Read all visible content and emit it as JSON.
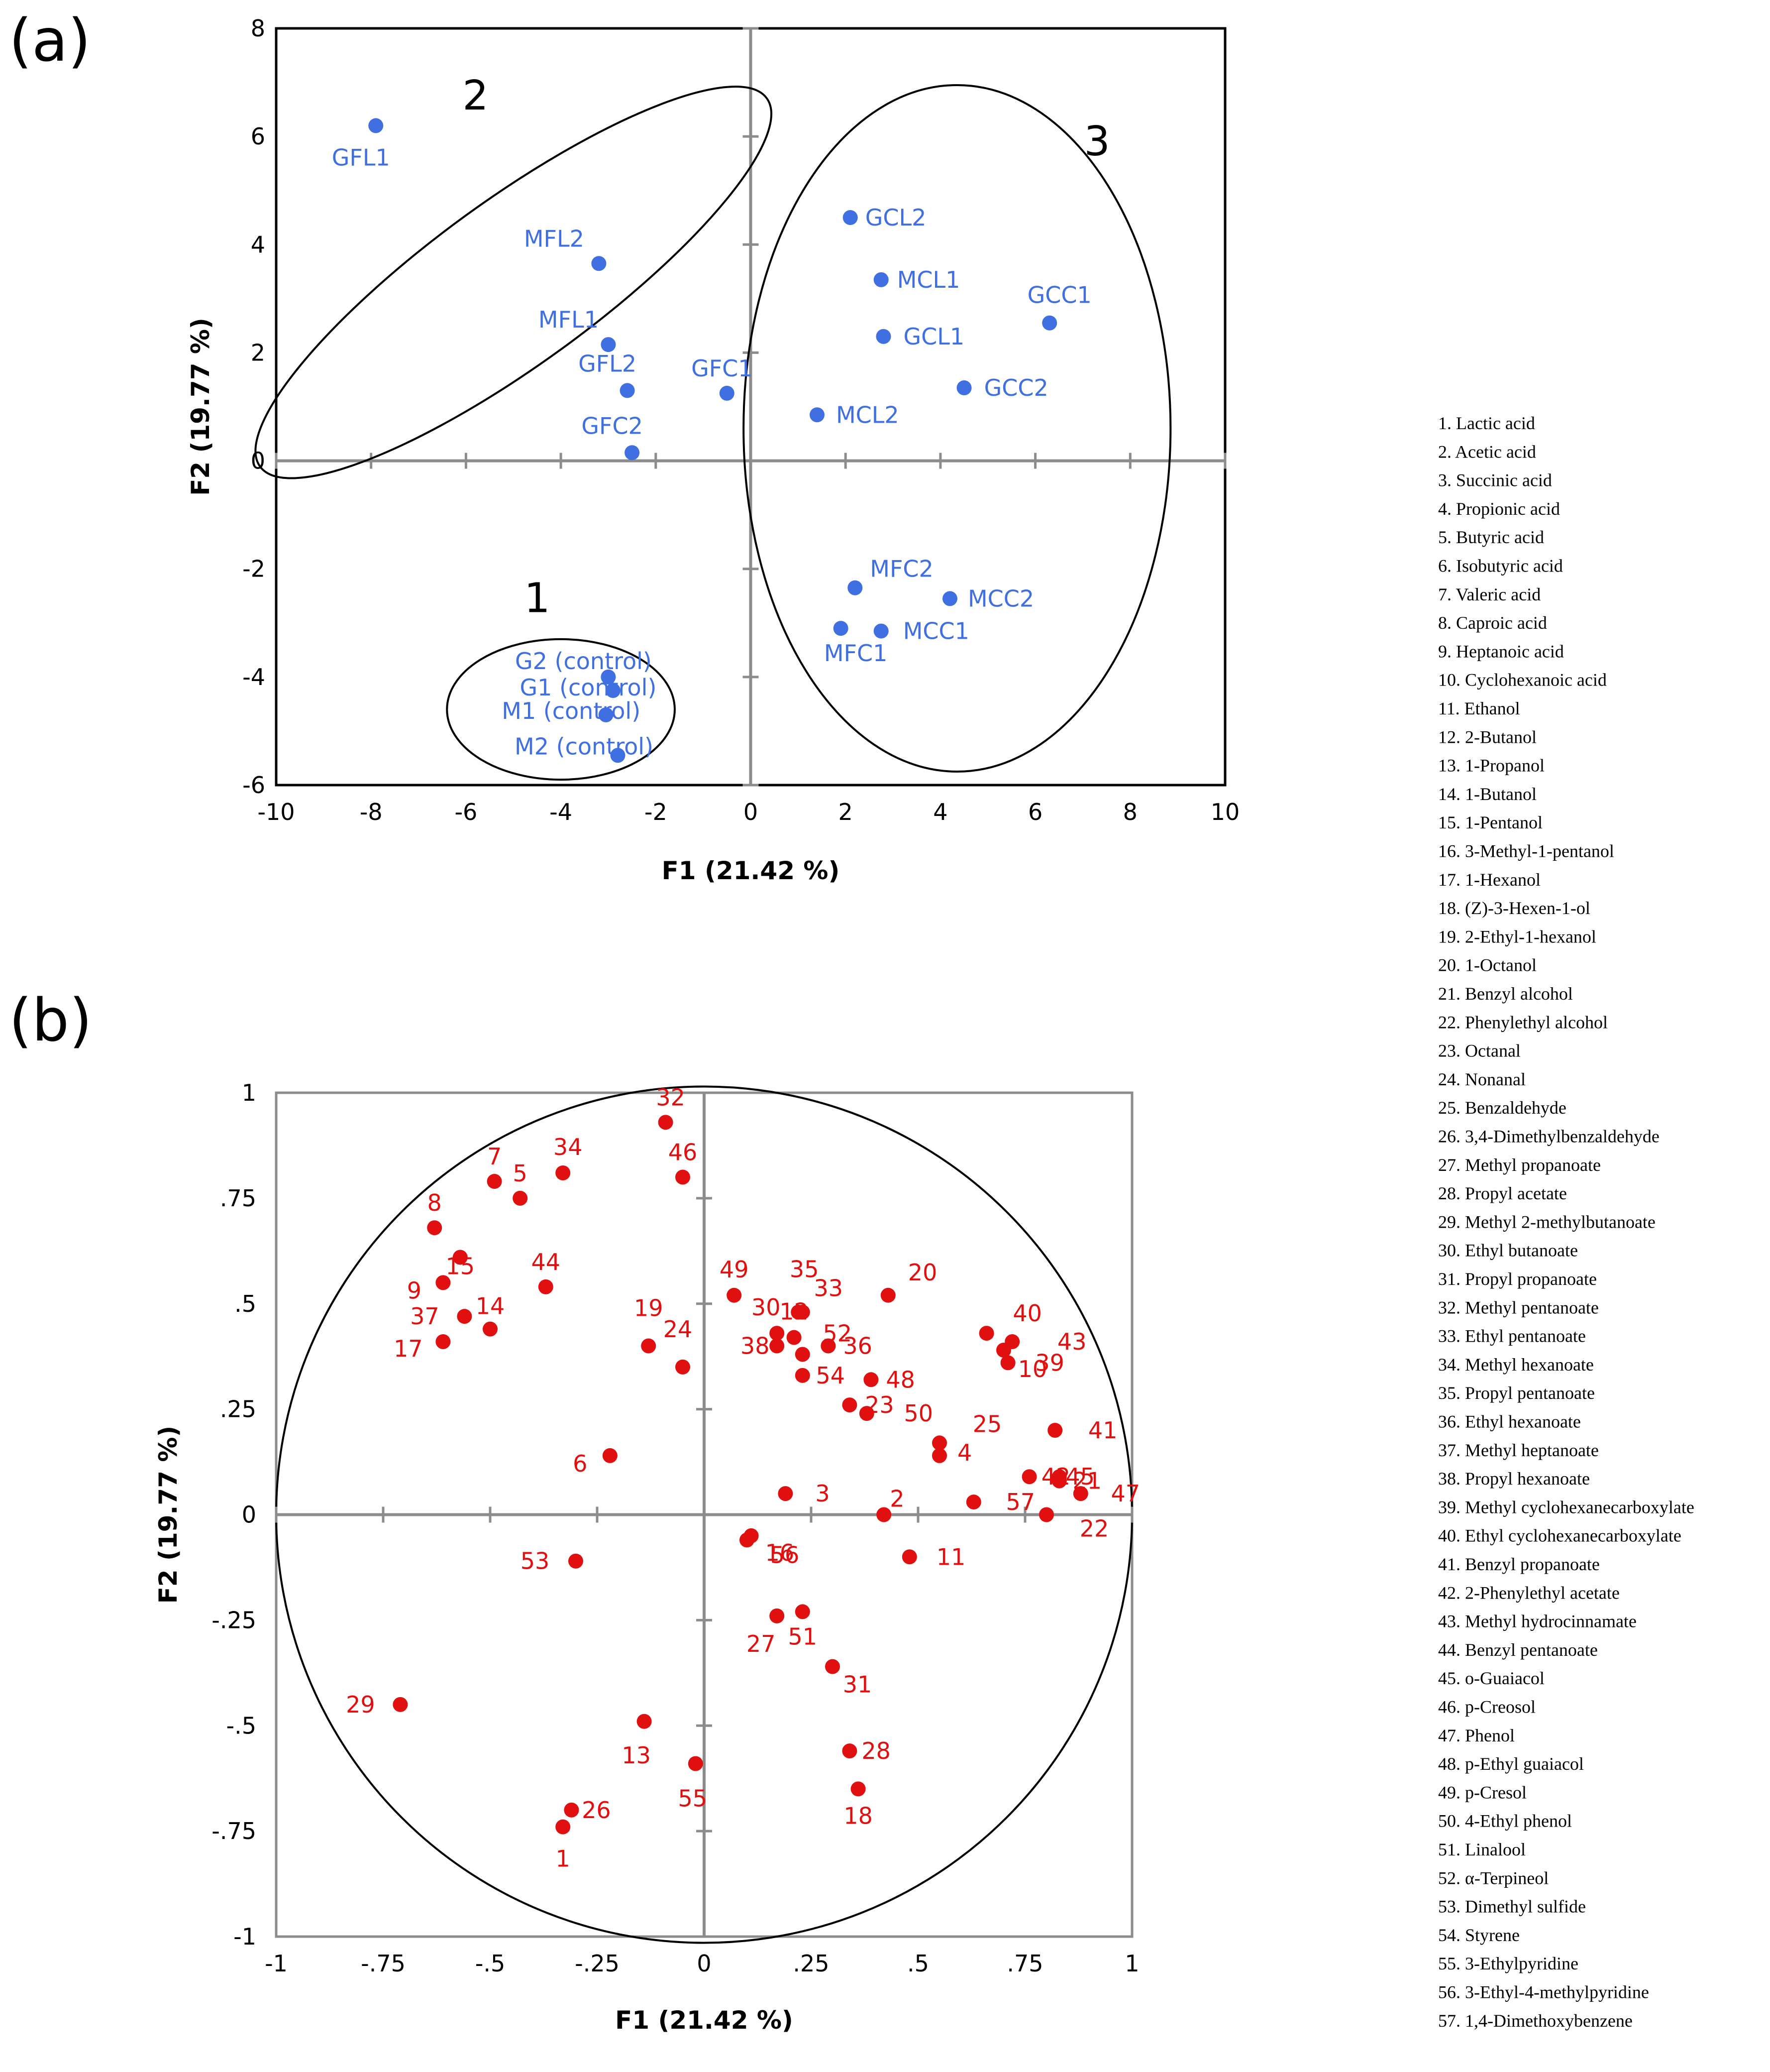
{
  "colors": {
    "blue": "#3f6fe0",
    "red": "#e01010",
    "axis": "#8c8c8c",
    "frame": "#000000"
  },
  "chart_data": [
    {
      "panel": "(a)",
      "type": "scatter",
      "xlabel": "F1 (21.42 %)",
      "ylabel": "F2 (19.77 %)",
      "xlim": [
        -10,
        10
      ],
      "ylim": [
        -6,
        8
      ],
      "xticks": [
        -10,
        -8,
        -6,
        -4,
        -2,
        0,
        2,
        4,
        6,
        8,
        10
      ],
      "yticks": [
        -6,
        -4,
        -2,
        0,
        2,
        4,
        6,
        8
      ],
      "points": [
        {
          "label": "GFL1",
          "x": -7.9,
          "y": 6.2
        },
        {
          "label": "MFL2",
          "x": -3.2,
          "y": 3.65
        },
        {
          "label": "MFL1",
          "x": -3.0,
          "y": 2.15
        },
        {
          "label": "GFL2",
          "x": -2.6,
          "y": 1.3
        },
        {
          "label": "GFC1",
          "x": -0.5,
          "y": 1.25
        },
        {
          "label": "GFC2",
          "x": -2.5,
          "y": 0.15
        },
        {
          "label": "GCL2",
          "x": 2.1,
          "y": 4.5
        },
        {
          "label": "MCL1",
          "x": 2.75,
          "y": 3.35
        },
        {
          "label": "GCL1",
          "x": 2.8,
          "y": 2.3
        },
        {
          "label": "GCC1",
          "x": 6.3,
          "y": 2.55
        },
        {
          "label": "GCC2",
          "x": 4.5,
          "y": 1.35
        },
        {
          "label": "MCL2",
          "x": 1.4,
          "y": 0.85
        },
        {
          "label": "MFC2",
          "x": 2.2,
          "y": -2.35
        },
        {
          "label": "MCC2",
          "x": 4.2,
          "y": -2.55
        },
        {
          "label": "MFC1",
          "x": 1.9,
          "y": -3.1
        },
        {
          "label": "MCC1",
          "x": 2.75,
          "y": -3.15
        },
        {
          "label": "G2 (control)",
          "x": -3.0,
          "y": -4.0
        },
        {
          "label": "G1 (control)",
          "x": -2.9,
          "y": -4.25
        },
        {
          "label": "M1 (control)",
          "x": -3.05,
          "y": -4.7
        },
        {
          "label": "M2 (control)",
          "x": -2.8,
          "y": -5.45
        }
      ],
      "clusters": [
        {
          "label": "1",
          "cx": -4.0,
          "cy": -4.6,
          "rx": 2.4,
          "ry": 1.3,
          "angle": 0
        },
        {
          "label": "2",
          "cx": -5.0,
          "cy": 3.3,
          "rx": 6.6,
          "ry": 1.65,
          "angle": -36
        },
        {
          "label": "3",
          "cx": 4.35,
          "cy": 0.6,
          "rx": 4.5,
          "ry": 6.35,
          "angle": 0
        }
      ]
    },
    {
      "panel": "(b)",
      "type": "scatter",
      "xlabel": "F1 (21.42 %)",
      "ylabel": "F2 (19.77 %)",
      "xlim": [
        -1,
        1
      ],
      "ylim": [
        -1,
        1
      ],
      "xticks": [
        -1,
        -0.75,
        -0.5,
        -0.25,
        0,
        0.25,
        0.5,
        0.75,
        1
      ],
      "yticks": [
        -1,
        -0.75,
        -0.5,
        -0.25,
        0,
        0.25,
        0.5,
        0.75,
        1
      ],
      "circle_radius": 1,
      "points": [
        {
          "label": "1",
          "x": -0.33,
          "y": -0.74
        },
        {
          "label": "2",
          "x": 0.42,
          "y": 0.0
        },
        {
          "label": "3",
          "x": 0.19,
          "y": 0.05
        },
        {
          "label": "4",
          "x": 0.55,
          "y": 0.14
        },
        {
          "label": "5",
          "x": -0.43,
          "y": 0.75
        },
        {
          "label": "6",
          "x": -0.22,
          "y": 0.14
        },
        {
          "label": "7",
          "x": -0.49,
          "y": 0.79
        },
        {
          "label": "8",
          "x": -0.63,
          "y": 0.68
        },
        {
          "label": "9",
          "x": -0.61,
          "y": 0.55
        },
        {
          "label": "10",
          "x": 0.7,
          "y": 0.39
        },
        {
          "label": "11",
          "x": 0.48,
          "y": -0.1
        },
        {
          "label": "12",
          "x": 0.21,
          "y": 0.42
        },
        {
          "label": "13",
          "x": -0.14,
          "y": -0.49
        },
        {
          "label": "14",
          "x": -0.5,
          "y": 0.44
        },
        {
          "label": "15",
          "x": -0.57,
          "y": 0.61
        },
        {
          "label": "16",
          "x": 0.11,
          "y": -0.05
        },
        {
          "label": "17",
          "x": -0.61,
          "y": 0.41
        },
        {
          "label": "18",
          "x": 0.36,
          "y": -0.65
        },
        {
          "label": "19",
          "x": -0.13,
          "y": 0.4
        },
        {
          "label": "20",
          "x": 0.43,
          "y": 0.52
        },
        {
          "label": "21",
          "x": 0.83,
          "y": 0.08
        },
        {
          "label": "22",
          "x": 0.8,
          "y": 0.0
        },
        {
          "label": "23",
          "x": 0.34,
          "y": 0.26
        },
        {
          "label": "24",
          "x": -0.05,
          "y": 0.35
        },
        {
          "label": "25",
          "x": 0.55,
          "y": 0.17
        },
        {
          "label": "26",
          "x": -0.31,
          "y": -0.7
        },
        {
          "label": "27",
          "x": 0.17,
          "y": -0.24
        },
        {
          "label": "28",
          "x": 0.34,
          "y": -0.56
        },
        {
          "label": "29",
          "x": -0.71,
          "y": -0.45
        },
        {
          "label": "30",
          "x": 0.17,
          "y": 0.43
        },
        {
          "label": "31",
          "x": 0.3,
          "y": -0.36
        },
        {
          "label": "32",
          "x": -0.09,
          "y": 0.93
        },
        {
          "label": "33",
          "x": 0.23,
          "y": 0.48
        },
        {
          "label": "34",
          "x": -0.33,
          "y": 0.81
        },
        {
          "label": "35",
          "x": 0.22,
          "y": 0.48
        },
        {
          "label": "36",
          "x": 0.29,
          "y": 0.4
        },
        {
          "label": "37",
          "x": -0.56,
          "y": 0.47
        },
        {
          "label": "38",
          "x": 0.17,
          "y": 0.4
        },
        {
          "label": "39",
          "x": 0.71,
          "y": 0.36
        },
        {
          "label": "40",
          "x": 0.66,
          "y": 0.43
        },
        {
          "label": "41",
          "x": 0.82,
          "y": 0.2
        },
        {
          "label": "42",
          "x": 0.76,
          "y": 0.09
        },
        {
          "label": "43",
          "x": 0.72,
          "y": 0.41
        },
        {
          "label": "44",
          "x": -0.37,
          "y": 0.54
        },
        {
          "label": "45",
          "x": 0.83,
          "y": 0.09
        },
        {
          "label": "46",
          "x": -0.05,
          "y": 0.8
        },
        {
          "label": "47",
          "x": 0.88,
          "y": 0.05
        },
        {
          "label": "48",
          "x": 0.39,
          "y": 0.32
        },
        {
          "label": "49",
          "x": 0.07,
          "y": 0.52
        },
        {
          "label": "50",
          "x": 0.38,
          "y": 0.24
        },
        {
          "label": "51",
          "x": 0.23,
          "y": -0.23
        },
        {
          "label": "52",
          "x": 0.23,
          "y": 0.38
        },
        {
          "label": "53",
          "x": -0.3,
          "y": -0.11
        },
        {
          "label": "54",
          "x": 0.23,
          "y": 0.33
        },
        {
          "label": "55",
          "x": -0.02,
          "y": -0.59
        },
        {
          "label": "56",
          "x": 0.1,
          "y": -0.06
        },
        {
          "label": "57",
          "x": 0.63,
          "y": 0.03
        }
      ]
    }
  ],
  "panel_labels": {
    "a": "(a)",
    "b": "(b)"
  },
  "legend_items": [
    "1. Lactic acid",
    "2. Acetic acid",
    "3. Succinic acid",
    "4. Propionic acid",
    "5. Butyric acid",
    "6. Isobutyric acid",
    "7. Valeric acid",
    "8. Caproic acid",
    "9. Heptanoic acid",
    "10. Cyclohexanoic acid",
    "11. Ethanol",
    "12. 2-Butanol",
    "13. 1-Propanol",
    "14. 1-Butanol",
    "15. 1-Pentanol",
    "16. 3-Methyl-1-pentanol",
    "17. 1-Hexanol",
    "18. (Z)-3-Hexen-1-ol",
    "19. 2-Ethyl-1-hexanol",
    "20. 1-Octanol",
    "21. Benzyl alcohol",
    "22. Phenylethyl alcohol",
    "23. Octanal",
    "24. Nonanal",
    "25. Benzaldehyde",
    "26. 3,4-Dimethylbenzaldehyde",
    "27. Methyl propanoate",
    "28. Propyl acetate",
    "29. Methyl 2-methylbutanoate",
    "30. Ethyl butanoate",
    "31. Propyl propanoate",
    "32. Methyl pentanoate",
    "33. Ethyl pentanoate",
    "34. Methyl hexanoate",
    "35. Propyl pentanoate",
    "36. Ethyl hexanoate",
    "37. Methyl heptanoate",
    "38. Propyl hexanoate",
    "39. Methyl cyclohexanecarboxylate",
    "40. Ethyl cyclohexanecarboxylate",
    "41. Benzyl propanoate",
    "42. 2-Phenylethyl acetate",
    "43. Methyl hydrocinnamate",
    "44. Benzyl pentanoate",
    "45. o-Guaiacol",
    "46. p-Creosol",
    "47. Phenol",
    "48. p-Ethyl guaiacol",
    "49. p-Cresol",
    "50. 4-Ethyl phenol",
    "51. Linalool",
    "52. α-Terpineol",
    "53. Dimethyl sulfide",
    "54. Styrene",
    "55. 3-Ethylpyridine",
    "56. 3-Ethyl-4-methylpyridine",
    "57. 1,4-Dimethoxybenzene"
  ]
}
